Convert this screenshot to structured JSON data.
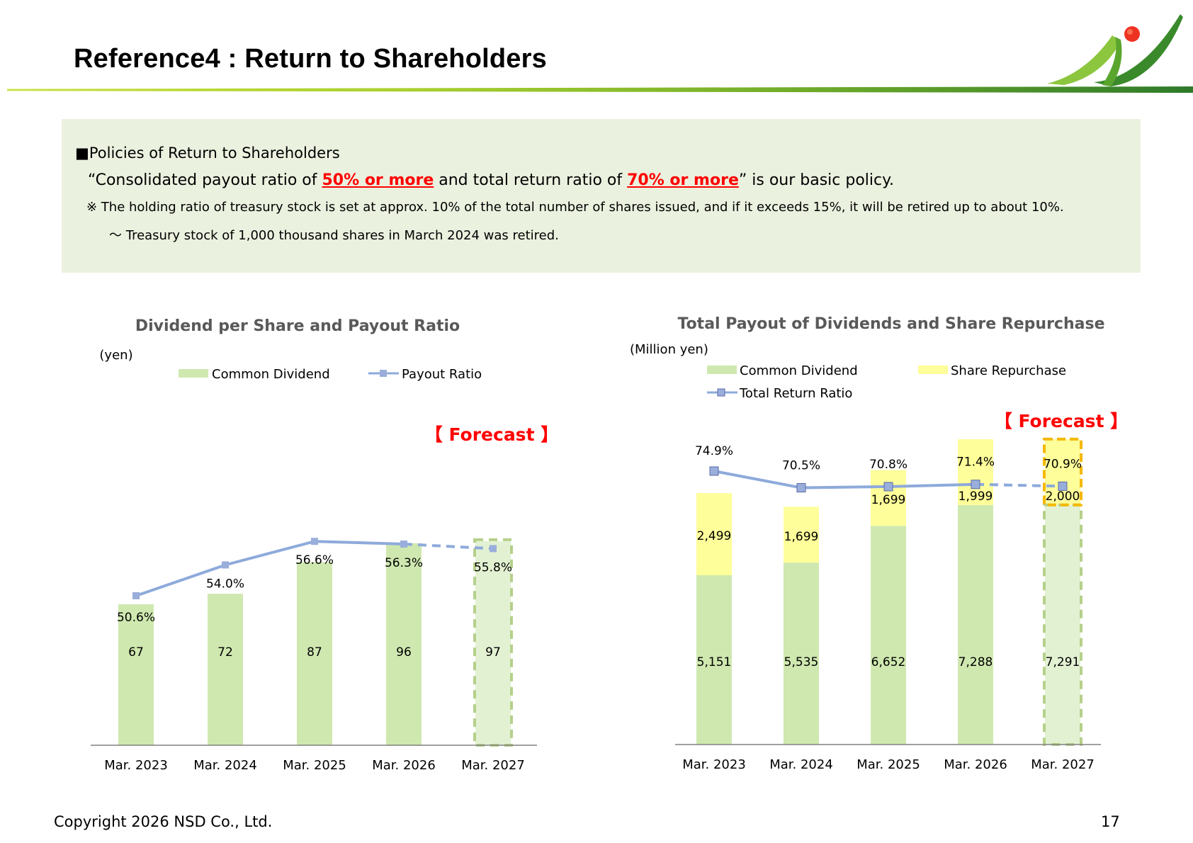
{
  "page": {
    "title": "Reference4 : Return to Shareholders",
    "copyright": "Copyright 2026 NSD Co., Ltd.",
    "page_number": "17"
  },
  "policy": {
    "bullet": "■",
    "heading": "Policies of Return to Shareholders",
    "main_prefix": "“Consolidated payout ratio of ",
    "highlight1": "50% or more",
    "main_middle": " and total return ratio of ",
    "highlight2": "70% or more",
    "main_suffix": "” is our basic policy.",
    "note1": "※ The holding ratio of treasury stock is set at approx. 10% of the total number of shares issued, and if it exceeds 15%, it will be retired up to about 10%.",
    "note2": "～ Treasury stock of 1,000 thousand shares in March 2024 was retired."
  },
  "colors": {
    "dividend": "#cfe8b0",
    "dividend_forecast": "#e3f1d3",
    "repurchase": "#fefe9a",
    "line": "#8eaadb",
    "marker": "#9aaedb",
    "forecast_text": "#ff0000",
    "forecast_box_dividend": "#b5d08a",
    "forecast_box_repurchase": "#f5b800",
    "axis": "#808080"
  },
  "chart_data": [
    {
      "type": "bar",
      "title": "Dividend per Share and Payout Ratio",
      "ylabel": "(yen)",
      "categories": [
        "Mar. 2023",
        "Mar. 2024",
        "Mar. 2025",
        "Mar. 2026",
        "Mar. 2027"
      ],
      "series": [
        {
          "name": "Common Dividend",
          "values": [
            67,
            72,
            87,
            96,
            97
          ],
          "labels": [
            "67",
            "72",
            "87",
            "96",
            "97"
          ]
        },
        {
          "name": "Payout Ratio",
          "type": "line",
          "values": [
            50.6,
            54.0,
            56.6,
            56.3,
            55.8
          ],
          "labels": [
            "50.6%",
            "54.0%",
            "56.6%",
            "56.3%",
            "55.8%"
          ]
        }
      ],
      "forecast_index": 4,
      "forecast_label": "【 Forecast 】",
      "legend": "top"
    },
    {
      "type": "bar",
      "stacked": true,
      "title": "Total Payout of Dividends and Share Repurchase",
      "ylabel": "(Million yen)",
      "categories": [
        "Mar. 2023",
        "Mar. 2024",
        "Mar. 2025",
        "Mar. 2026",
        "Mar. 2027"
      ],
      "series": [
        {
          "name": "Common Dividend",
          "values": [
            5151,
            5535,
            6652,
            7288,
            7291
          ],
          "labels": [
            "5,151",
            "5,535",
            "6,652",
            "7,288",
            "7,291"
          ]
        },
        {
          "name": "Share Repurchase",
          "values": [
            2499,
            1699,
            1699,
            1999,
            2000
          ],
          "labels": [
            "2,499",
            "1,699",
            "1,699",
            "1,999",
            "2,000"
          ]
        },
        {
          "name": "Total Return Ratio",
          "type": "line",
          "values": [
            74.9,
            70.5,
            70.8,
            71.4,
            70.9
          ],
          "labels": [
            "74.9%",
            "70.5%",
            "70.8%",
            "71.4%",
            "70.9%"
          ]
        }
      ],
      "forecast_index": 4,
      "forecast_label": "【 Forecast 】",
      "legend": "top"
    }
  ]
}
